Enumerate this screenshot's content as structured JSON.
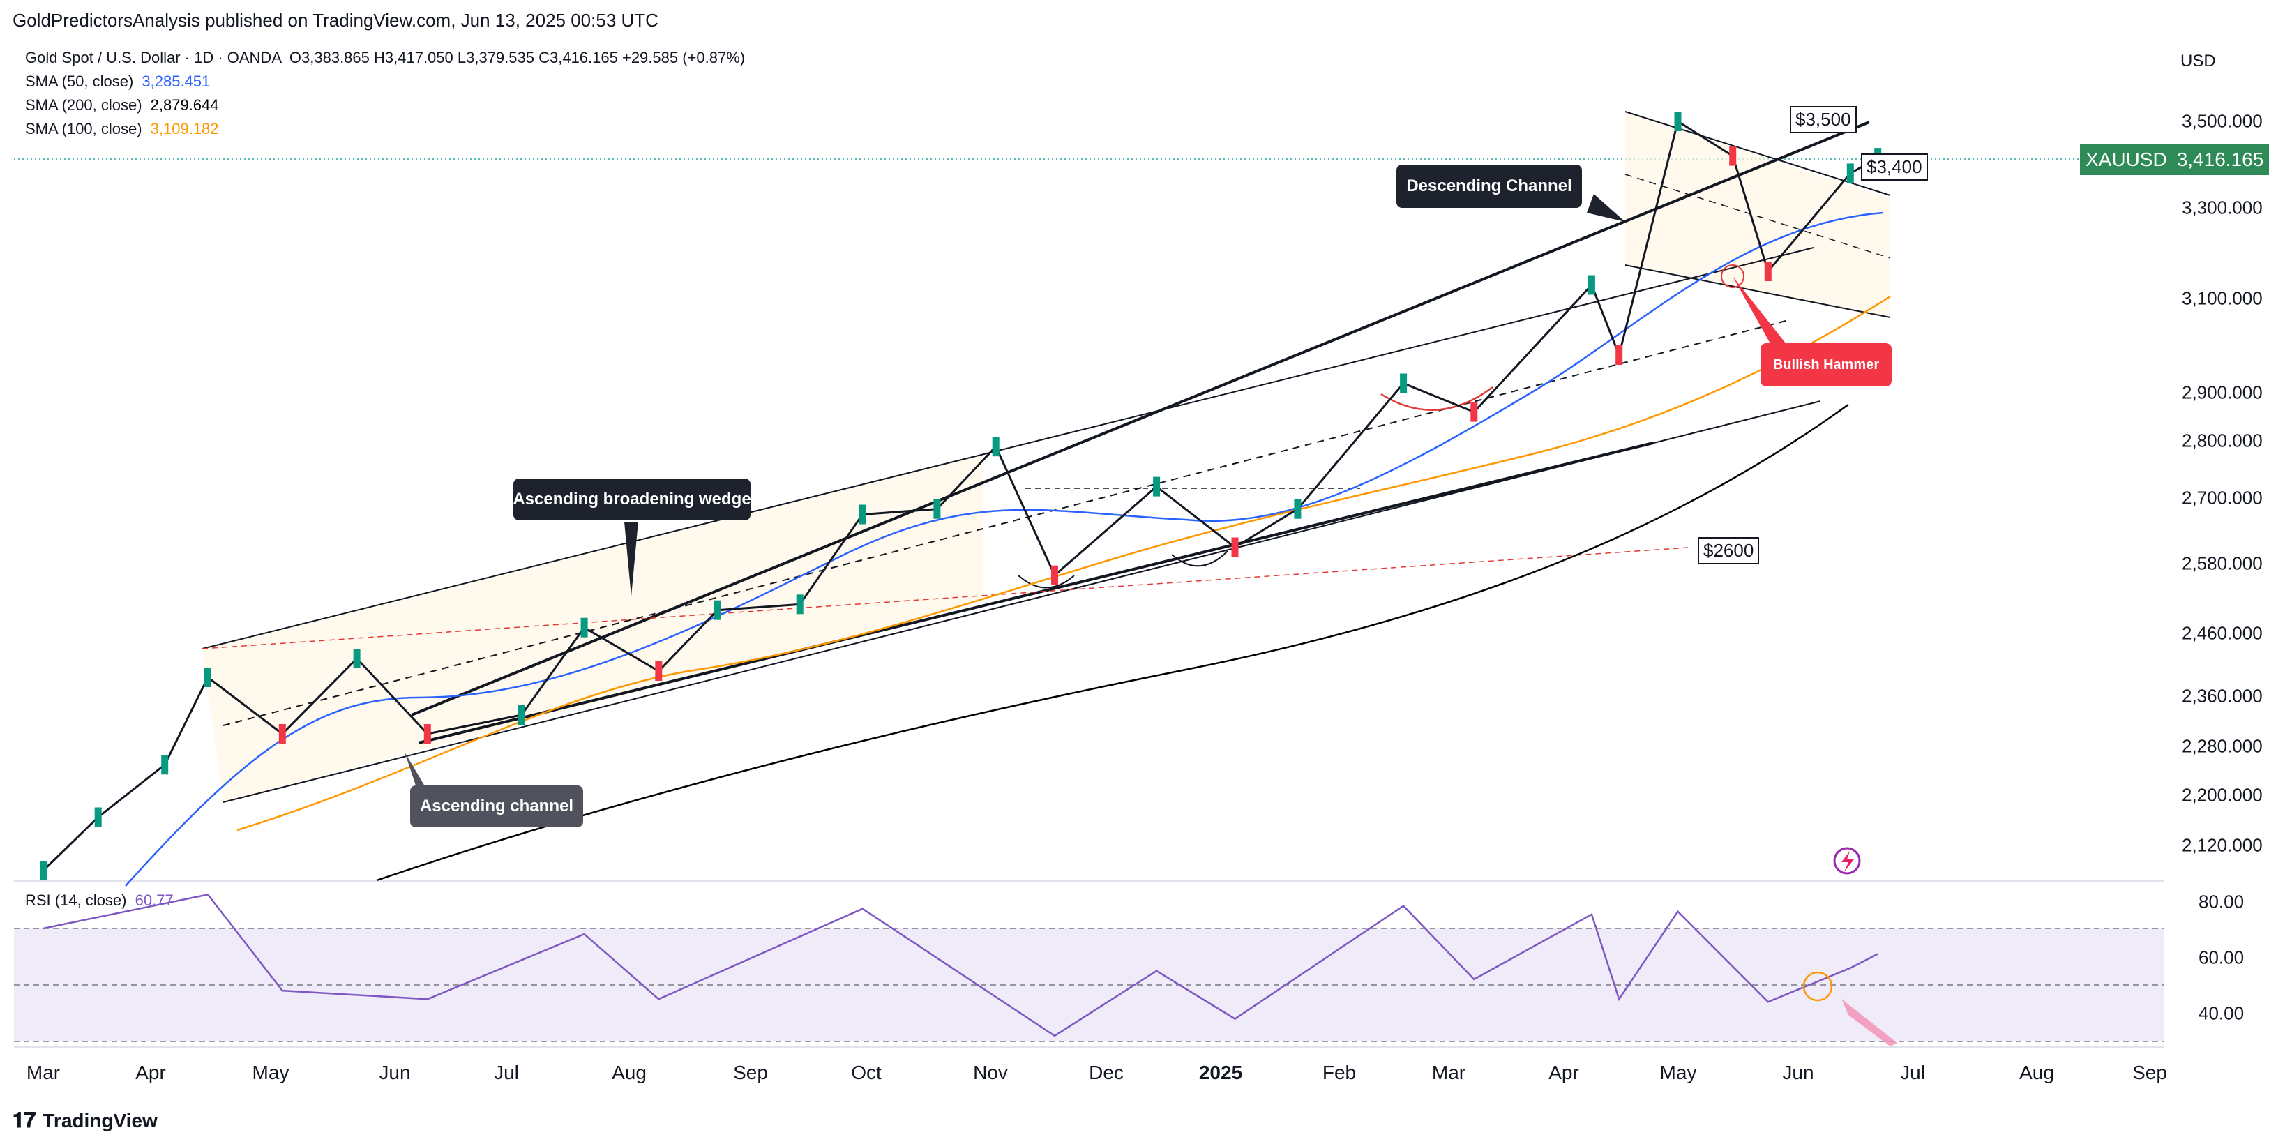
{
  "header": {
    "published": "GoldPredictorsAnalysis published on TradingView.com, Jun 13, 2025 00:53 UTC"
  },
  "legend": {
    "title": "Gold Spot / U.S. Dollar · 1D · OANDA",
    "ohlc": "O3,383.865  H3,417.050  L3,379.535  C3,416.165  +29.585 (+0.87%)",
    "sma50_label": "SMA (50, close)",
    "sma50_value": "3,285.451",
    "sma50_color": "#2962ff",
    "sma200_label": "SMA (200, close)",
    "sma200_value": "2,879.644",
    "sma200_color": "#000000",
    "sma100_label": "SMA (100, close)",
    "sma100_value": "3,109.182",
    "sma100_color": "#ff9800"
  },
  "currency": "USD",
  "price_tag": {
    "symbol": "XAUUSD",
    "value": "3,416.165"
  },
  "annotations": {
    "descending_channel": "Descending Channel",
    "ascending_wedge": "Ascending broadening wedge",
    "ascending_channel": "Ascending channel",
    "bullish_hammer": "Bullish Hammer",
    "level_3500": "$3,500",
    "level_3400": "$3,400",
    "level_2600": "$2600"
  },
  "rsi": {
    "label": "RSI (14, close)",
    "value": "60.77",
    "ticks": [
      "80.00",
      "60.00",
      "40.00"
    ]
  },
  "footer": {
    "brand": "TradingView"
  },
  "chart_data": {
    "type": "candlestick",
    "symbol": "XAUUSD",
    "y_ticks": [
      "3,500.000",
      "3,300.000",
      "3,100.000",
      "2,900.000",
      "2,800.000",
      "2,700.000",
      "2,580.000",
      "2,460.000",
      "2,360.000",
      "2,280.000",
      "2,200.000",
      "2,120.000"
    ],
    "x_ticks": [
      "Mar",
      "Apr",
      "May",
      "Jun",
      "Jul",
      "Aug",
      "Sep",
      "Oct",
      "Nov",
      "Dec",
      "2025",
      "Feb",
      "Mar",
      "Apr",
      "May",
      "Jun",
      "Jul",
      "Aug",
      "Sep"
    ],
    "price_path": [
      [
        "2024-03-01",
        2080
      ],
      [
        "2024-03-15",
        2165
      ],
      [
        "2024-04-01",
        2250
      ],
      [
        "2024-04-12",
        2390
      ],
      [
        "2024-05-01",
        2300
      ],
      [
        "2024-05-20",
        2420
      ],
      [
        "2024-06-07",
        2300
      ],
      [
        "2024-07-01",
        2330
      ],
      [
        "2024-07-17",
        2470
      ],
      [
        "2024-08-05",
        2400
      ],
      [
        "2024-08-20",
        2500
      ],
      [
        "2024-09-10",
        2510
      ],
      [
        "2024-09-26",
        2670
      ],
      [
        "2024-10-15",
        2680
      ],
      [
        "2024-10-30",
        2790
      ],
      [
        "2024-11-14",
        2560
      ],
      [
        "2024-12-10",
        2720
      ],
      [
        "2024-12-30",
        2610
      ],
      [
        "2025-01-15",
        2680
      ],
      [
        "2025-02-11",
        2920
      ],
      [
        "2025-03-01",
        2860
      ],
      [
        "2025-03-31",
        3130
      ],
      [
        "2025-04-07",
        2980
      ],
      [
        "2025-04-22",
        3500
      ],
      [
        "2025-05-06",
        3420
      ],
      [
        "2025-05-15",
        3160
      ],
      [
        "2025-06-05",
        3380
      ],
      [
        "2025-06-12",
        3416
      ]
    ],
    "rsi_path": [
      [
        "2024-03-01",
        70
      ],
      [
        "2024-04-12",
        82
      ],
      [
        "2024-05-01",
        48
      ],
      [
        "2024-06-07",
        45
      ],
      [
        "2024-07-17",
        68
      ],
      [
        "2024-08-05",
        45
      ],
      [
        "2024-09-26",
        77
      ],
      [
        "2024-11-14",
        32
      ],
      [
        "2024-12-10",
        55
      ],
      [
        "2024-12-30",
        38
      ],
      [
        "2025-02-11",
        78
      ],
      [
        "2025-03-01",
        52
      ],
      [
        "2025-03-31",
        75
      ],
      [
        "2025-04-07",
        45
      ],
      [
        "2025-04-22",
        76
      ],
      [
        "2025-05-15",
        44
      ],
      [
        "2025-06-05",
        56
      ],
      [
        "2025-06-12",
        61
      ]
    ]
  }
}
